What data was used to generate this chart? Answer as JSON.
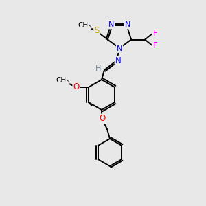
{
  "bg_color": "#e8e8e8",
  "bond_color": "#000000",
  "atom_colors": {
    "N": "#0000ff",
    "S": "#ccaa00",
    "F": "#ff00ff",
    "O": "#ff0000",
    "C": "#000000",
    "H": "#708090"
  },
  "figsize": [
    3.0,
    3.0
  ],
  "dpi": 100
}
